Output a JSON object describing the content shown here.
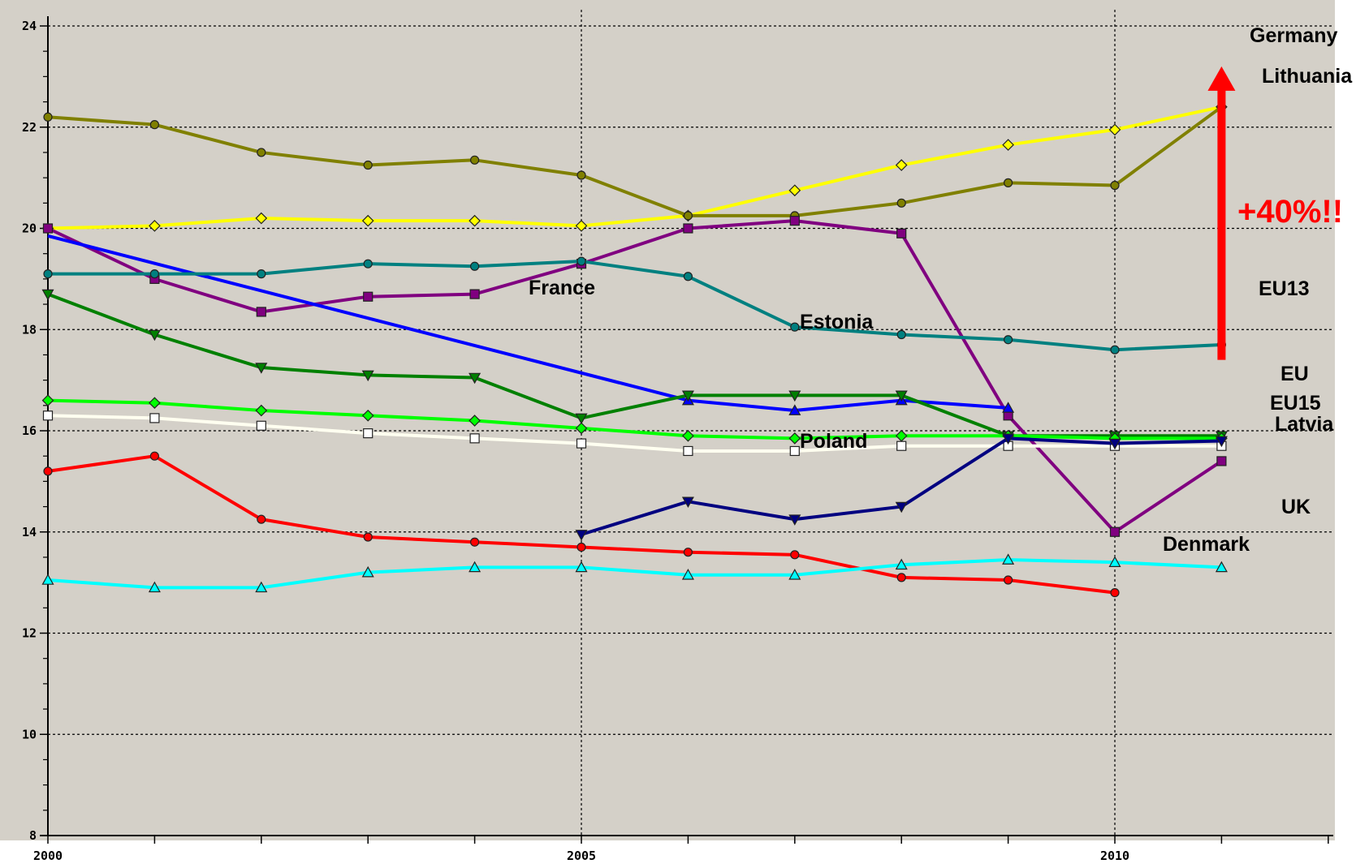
{
  "chart_data": {
    "type": "line",
    "title": "",
    "xlabel": "",
    "ylabel": "",
    "xlim": [
      2000,
      2012
    ],
    "ylim": [
      8,
      24
    ],
    "x_ticks": [
      "2000",
      "2005",
      "2010"
    ],
    "y_ticks": [
      "8",
      "10",
      "12",
      "14",
      "16",
      "18",
      "20",
      "22",
      "24"
    ],
    "grid": true,
    "colors": {
      "background": "#d4d0c8",
      "gridline": "#000000",
      "arrow": "#ff0000"
    },
    "series": [
      {
        "key": "lithuania",
        "color": "#ffff00",
        "marker": "diamond",
        "x": [
          2000,
          2001,
          2002,
          2003,
          2004,
          2005,
          2006,
          2007,
          2008,
          2009,
          2010,
          2011
        ],
        "values": [
          20.0,
          20.05,
          20.2,
          20.15,
          20.15,
          20.05,
          20.25,
          20.75,
          21.25,
          21.65,
          21.95,
          22.4
        ]
      },
      {
        "key": "germany",
        "color": "#808000",
        "marker": "circle",
        "x": [
          2000,
          2001,
          2002,
          2003,
          2004,
          2005,
          2006,
          2007,
          2008,
          2009,
          2010,
          2011
        ],
        "values": [
          22.2,
          22.05,
          21.5,
          21.25,
          21.35,
          21.05,
          20.25,
          20.25,
          20.5,
          20.9,
          20.85,
          22.4
        ]
      },
      {
        "key": "eu13",
        "color": "#800080",
        "marker": "square",
        "x": [
          2000,
          2001,
          2002,
          2003,
          2004,
          2005,
          2006,
          2007,
          2008,
          2009,
          2010,
          2011
        ],
        "values": [
          20.0,
          19.0,
          18.35,
          18.65,
          18.7,
          19.3,
          20.0,
          20.15,
          19.9,
          16.3,
          14.0,
          15.4
        ]
      },
      {
        "key": "france",
        "color": "#0000ff",
        "marker": "triangle-up",
        "x": [
          2000,
          2006,
          2007,
          2008,
          2009
        ],
        "values": [
          19.85,
          16.6,
          16.4,
          16.6,
          16.45
        ]
      },
      {
        "key": "estonia",
        "color": "#008080",
        "marker": "circle",
        "x": [
          2000,
          2001,
          2002,
          2003,
          2004,
          2005,
          2006,
          2007,
          2008,
          2009,
          2010,
          2011
        ],
        "values": [
          19.1,
          19.1,
          19.1,
          19.3,
          19.25,
          19.35,
          19.05,
          18.05,
          17.9,
          17.8,
          17.6,
          17.7
        ]
      },
      {
        "key": "eu",
        "color": "#008000",
        "marker": "triangle-down",
        "x": [
          2000,
          2001,
          2002,
          2003,
          2004,
          2005,
          2006,
          2007,
          2008,
          2009,
          2010,
          2011
        ],
        "values": [
          18.7,
          17.9,
          17.25,
          17.1,
          17.05,
          16.25,
          16.7,
          16.7,
          16.7,
          15.9,
          15.9,
          15.9
        ]
      },
      {
        "key": "eu15",
        "color": "#00ff00",
        "marker": "diamond",
        "x": [
          2000,
          2001,
          2002,
          2003,
          2004,
          2005,
          2006,
          2007,
          2008,
          2009,
          2010,
          2011
        ],
        "values": [
          16.6,
          16.55,
          16.4,
          16.3,
          16.2,
          16.05,
          15.9,
          15.85,
          15.9,
          15.9,
          15.85,
          15.85
        ]
      },
      {
        "key": "latvia",
        "color": "#fffff0",
        "marker": "square-open",
        "x": [
          2000,
          2001,
          2002,
          2003,
          2004,
          2005,
          2006,
          2007,
          2008,
          2009,
          2010,
          2011
        ],
        "values": [
          16.3,
          16.25,
          16.1,
          15.95,
          15.85,
          15.75,
          15.6,
          15.6,
          15.7,
          15.7,
          15.7,
          15.7
        ]
      },
      {
        "key": "poland",
        "color": "#000080",
        "marker": "triangle-down",
        "x": [
          2005,
          2006,
          2007,
          2008,
          2009,
          2010,
          2011
        ],
        "values": [
          13.95,
          14.6,
          14.25,
          14.5,
          15.85,
          15.75,
          15.8
        ]
      },
      {
        "key": "uk",
        "color": "#ff0000",
        "marker": "circle",
        "x": [
          2000,
          2001,
          2002,
          2003,
          2004,
          2005,
          2006,
          2007,
          2008,
          2009,
          2010
        ],
        "values": [
          15.2,
          15.5,
          14.25,
          13.9,
          13.8,
          13.7,
          13.6,
          13.55,
          13.1,
          13.05,
          12.8
        ]
      },
      {
        "key": "denmark",
        "color": "#00ffff",
        "marker": "triangle-up",
        "x": [
          2000,
          2001,
          2002,
          2003,
          2004,
          2005,
          2006,
          2007,
          2008,
          2009,
          2010,
          2011
        ],
        "values": [
          13.05,
          12.9,
          12.9,
          13.2,
          13.3,
          13.3,
          13.15,
          13.15,
          13.35,
          13.45,
          13.4,
          13.3
        ]
      }
    ],
    "annotations": {
      "germany": "Germany",
      "lithuania": "Lithuania",
      "eu13": "EU13",
      "eu": "EU",
      "eu15": "EU15",
      "latvia": "Latvia",
      "uk": "UK",
      "denmark": "Denmark",
      "france": "France",
      "estonia": "Estonia",
      "poland": "Poland"
    },
    "callout": {
      "text": "+40%!!",
      "color": "#ff0000",
      "arrow_from_value": 17.4,
      "arrow_to_value": 23.2,
      "arrow_x": 2011
    }
  }
}
